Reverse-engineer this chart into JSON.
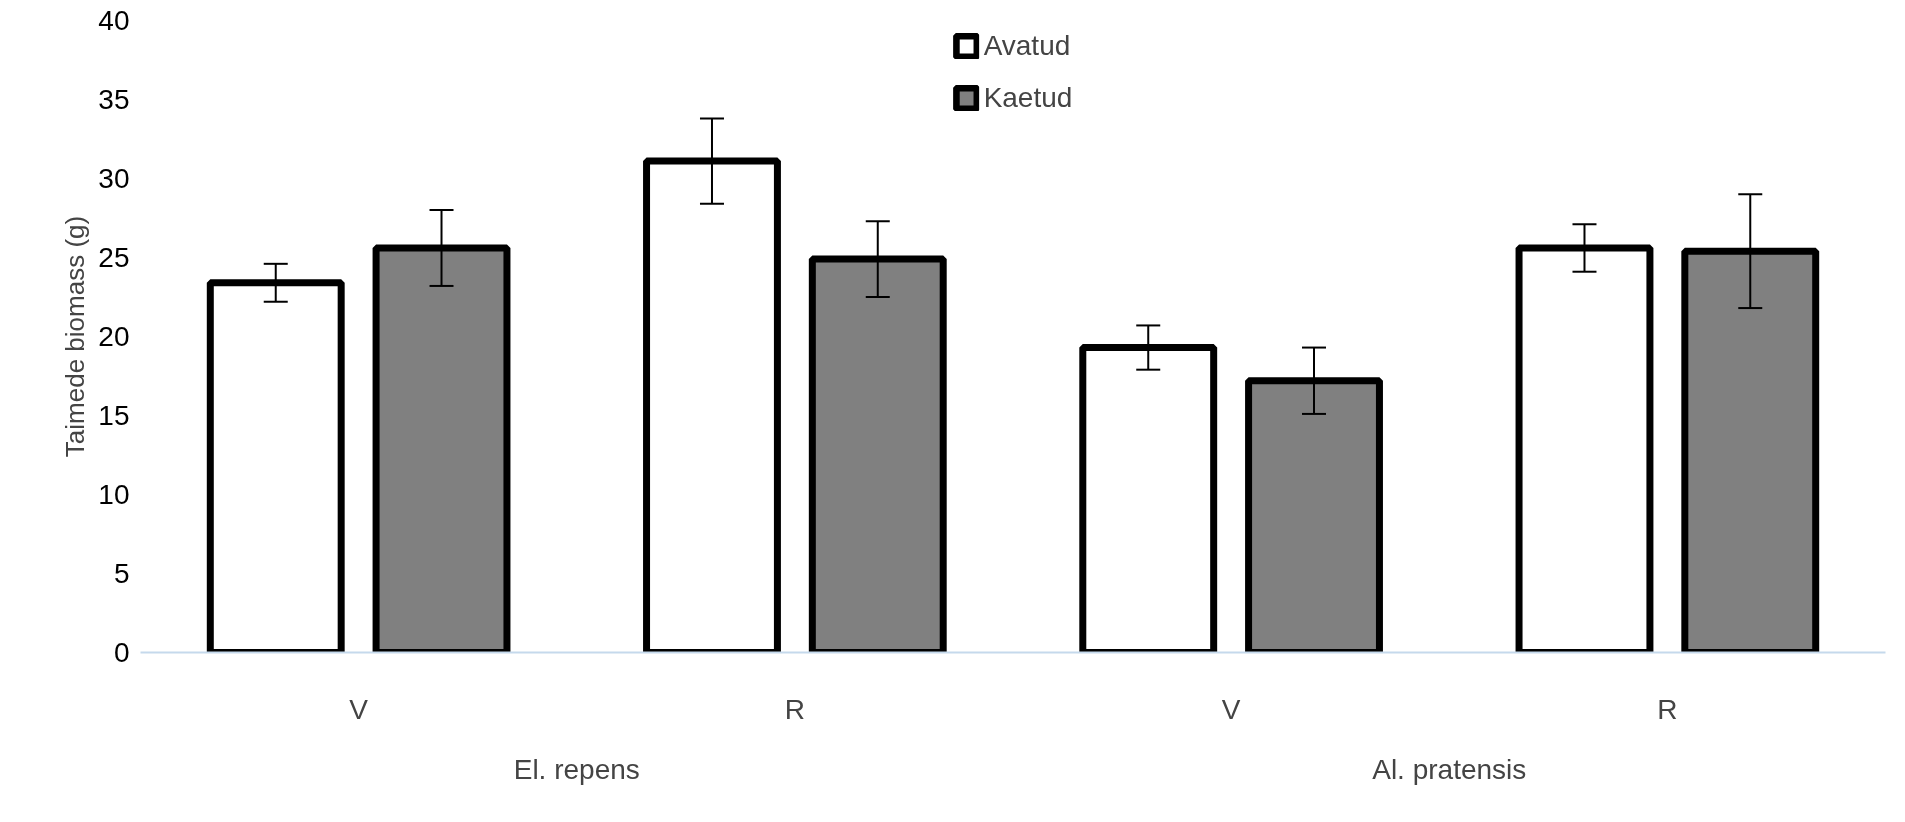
{
  "chart_data": {
    "type": "bar",
    "ylabel": "Taimede biomass (g)",
    "categories": [
      "V",
      "R",
      "V",
      "R"
    ],
    "annotations": [
      "El. repens",
      "Al. pratensis"
    ],
    "series": [
      {
        "name": "Avatud",
        "color": "#ffffff",
        "values": [
          23.4,
          31.1,
          19.3,
          25.6
        ],
        "errors": [
          1.2,
          2.7,
          1.4,
          1.5
        ]
      },
      {
        "name": "Kaetud",
        "color": "#808080",
        "values": [
          25.6,
          24.9,
          17.2,
          25.4
        ],
        "errors": [
          2.4,
          2.4,
          2.1,
          3.6
        ]
      }
    ],
    "ylim": [
      0,
      40
    ],
    "yticks": [
      0,
      5,
      10,
      15,
      20,
      25,
      30,
      35,
      40
    ],
    "grid": false,
    "legend": "top"
  }
}
